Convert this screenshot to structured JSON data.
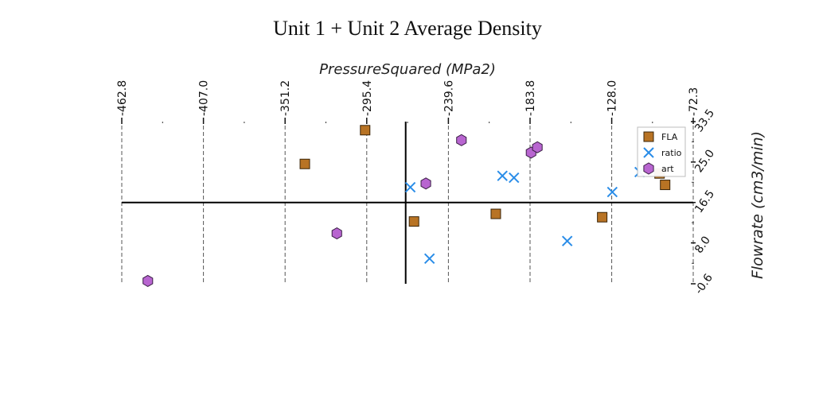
{
  "chart_data": {
    "type": "scatter",
    "title": "Unit 1 + Unit 2 Average Density",
    "xlabel": "PressureSquared (MPa2)",
    "ylabel": "Flowrate (cm3/min)",
    "x_ticks": [
      "-462.8",
      "-407.0",
      "-351.2",
      "-295.4",
      "-239.6",
      "-183.8",
      "-128.0",
      "-72.3"
    ],
    "y_ticks": [
      "-0.6",
      "8.0",
      "16.5",
      "25.0",
      "33.5"
    ],
    "xlim": [
      -462.8,
      -72.3
    ],
    "ylim": [
      -0.6,
      33.5
    ],
    "x_axis_position": "top",
    "y_axis_position": "right",
    "crosshair": {
      "x": -268.8,
      "y": 16.5
    },
    "grid": "vertical dashed",
    "legend_position": "top-right",
    "series": [
      {
        "name": "FLA",
        "marker": "square",
        "color": "#b87324",
        "points": [
          [
            -296.5,
            31.7
          ],
          [
            -337.7,
            24.6
          ],
          [
            -263.1,
            12.5
          ],
          [
            -207.2,
            14.1
          ],
          [
            -134.5,
            13.4
          ],
          [
            -95.3,
            22.6
          ],
          [
            -91.5,
            20.2
          ]
        ]
      },
      {
        "name": "ratio",
        "marker": "x",
        "color": "#2a8de8",
        "points": [
          [
            -265.6,
            19.7
          ],
          [
            -252.5,
            4.7
          ],
          [
            -202.7,
            22.1
          ],
          [
            -194.8,
            21.7
          ],
          [
            -158.4,
            8.4
          ],
          [
            -127.6,
            18.7
          ],
          [
            -108.9,
            22.9
          ]
        ]
      },
      {
        "name": "art",
        "marker": "hexagon",
        "color": "#b865d0",
        "points": [
          [
            -445.0,
            0.0
          ],
          [
            -315.8,
            10.0
          ],
          [
            -255.0,
            20.5
          ],
          [
            -230.7,
            29.6
          ],
          [
            -183.1,
            27.0
          ],
          [
            -178.8,
            28.1
          ]
        ]
      }
    ]
  }
}
